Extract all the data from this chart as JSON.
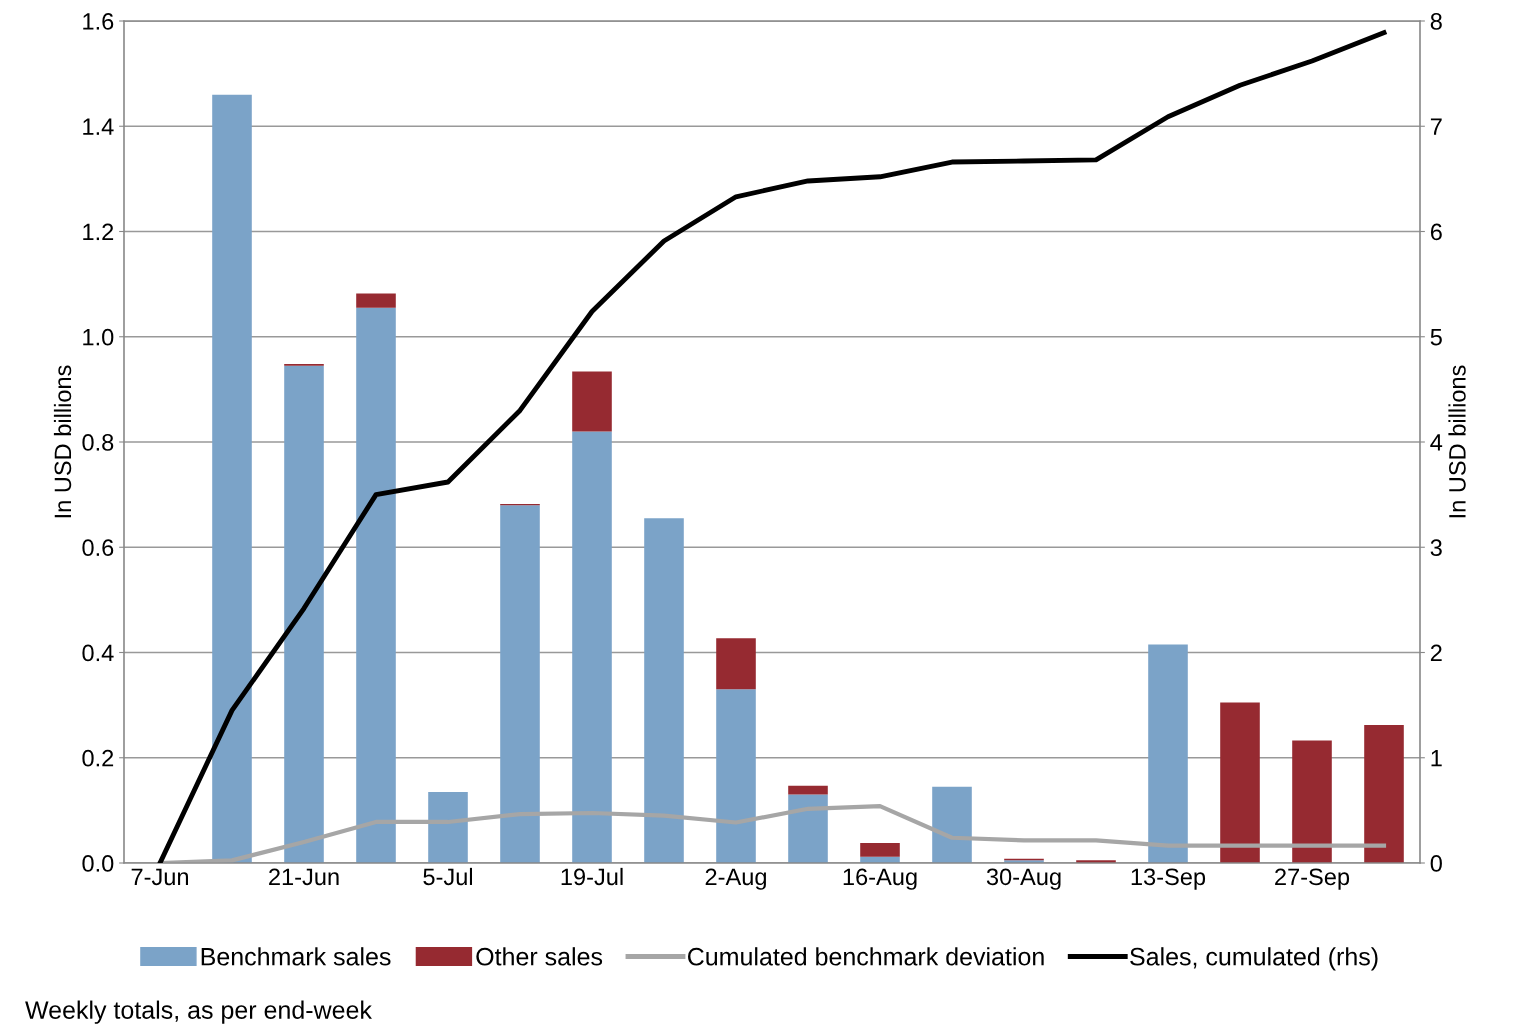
{
  "chart_data": {
    "type": "bar",
    "stacked": true,
    "categories": [
      "7-Jun",
      null,
      "21-Jun",
      null,
      "5-Jul",
      null,
      "19-Jul",
      null,
      "2-Aug",
      null,
      "16-Aug",
      null,
      "30-Aug",
      null,
      "13-Sep",
      null,
      "27-Sep",
      null
    ],
    "series": [
      {
        "name": "Benchmark sales",
        "color": "#7ba3c8",
        "values": [
          0,
          1.46,
          0.945,
          1.055,
          0.135,
          0.68,
          0.82,
          0.655,
          0.33,
          0.13,
          0.012,
          0.145,
          0.005,
          0,
          0.415,
          0,
          0,
          0
        ]
      },
      {
        "name": "Other sales",
        "color": "#962a31",
        "values": [
          0,
          0,
          0.003,
          0.027,
          0,
          0.002,
          0.114,
          0,
          0.097,
          0.017,
          0.026,
          0,
          0.003,
          0.005,
          0,
          0.305,
          0.233,
          0.262
        ]
      },
      {
        "name": "Cumulated benchmark deviation",
        "type": "line",
        "color": "#a6a6a6",
        "values": [
          0,
          0.005,
          0.04,
          0.078,
          0.078,
          0.093,
          0.095,
          0.09,
          0.077,
          0.103,
          0.108,
          0.048,
          0.043,
          0.043,
          0.033,
          0.033,
          0.033,
          0.033
        ]
      },
      {
        "name": "Sales, cumulated (rhs)",
        "type": "line",
        "axis": "y2",
        "color": "#000000",
        "values": [
          0,
          1.45,
          2.42,
          3.5,
          3.62,
          4.3,
          5.24,
          5.91,
          6.33,
          6.48,
          6.52,
          6.66,
          6.67,
          6.68,
          7.09,
          7.39,
          7.62,
          7.89
        ]
      }
    ],
    "ylabel": "In USD billions",
    "y2label": "In USD billions",
    "ylim": [
      0,
      1.6
    ],
    "yticks": [
      {
        "value": 0,
        "label": "0.0"
      },
      0.2,
      0.4,
      0.6,
      0.8,
      {
        "value": 1,
        "label": "1.0"
      },
      1.2,
      1.4,
      1.6
    ],
    "y2lim": [
      0,
      8
    ],
    "y2ticks": [
      0,
      1,
      2,
      3,
      4,
      5,
      6,
      7,
      8
    ],
    "grid": true,
    "legend": "bottom",
    "annotations": [
      "Weekly totals, as per end-week"
    ]
  }
}
